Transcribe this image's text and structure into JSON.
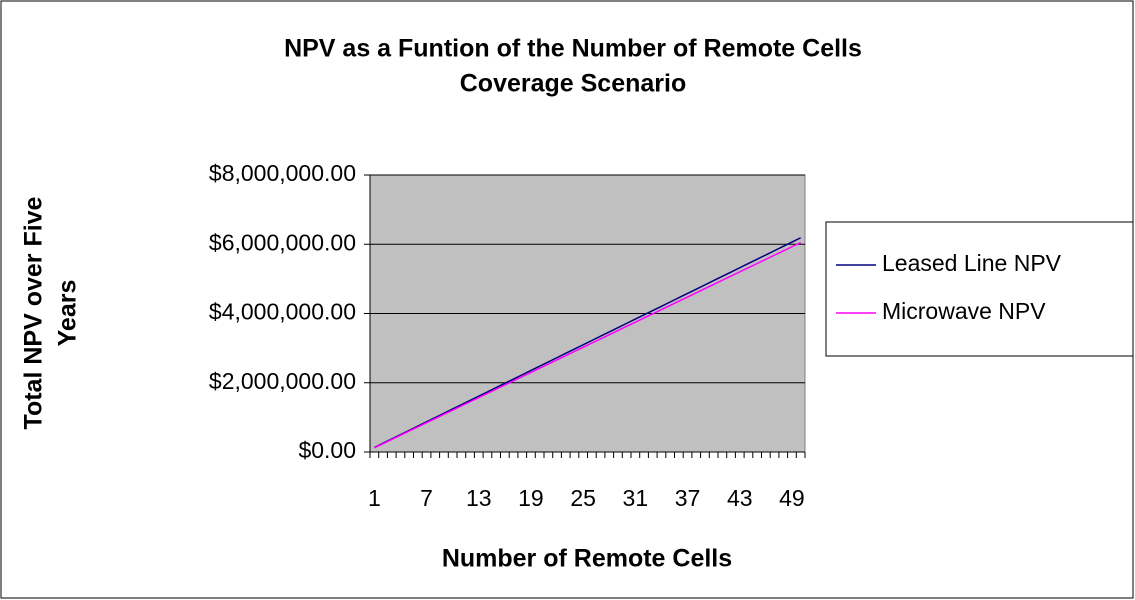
{
  "chart_data": {
    "type": "line",
    "title": [
      "NPV as a Funtion of the Number of Remote Cells",
      "Coverage Scenario"
    ],
    "x_label": "Number of Remote Cells",
    "y_label": [
      "Total NPV over Five",
      "Years"
    ],
    "categories": [
      1,
      null,
      null,
      null,
      null,
      null,
      7,
      null,
      null,
      null,
      null,
      null,
      13,
      null,
      null,
      null,
      null,
      null,
      19,
      null,
      null,
      null,
      null,
      null,
      25,
      null,
      null,
      null,
      null,
      null,
      31,
      null,
      null,
      null,
      null,
      null,
      37,
      null,
      null,
      null,
      null,
      null,
      43,
      null,
      null,
      null,
      null,
      null,
      49,
      null
    ],
    "series": [
      {
        "name": "Leased Line NPV",
        "color": "#000080",
        "values": [
          130000,
          253600,
          377200,
          500800,
          624400,
          748000,
          871600,
          995200,
          1118800,
          1242400,
          1366000,
          1489600,
          1613200,
          1736800,
          1860400,
          1984000,
          2107600,
          2231200,
          2354800,
          2478400,
          2602000,
          2725600,
          2849200,
          2972800,
          3096400,
          3220000,
          3343600,
          3467200,
          3590800,
          3714400,
          3838000,
          3961600,
          4085200,
          4208800,
          4332400,
          4456000,
          4579600,
          4703200,
          4826800,
          4950400,
          5074000,
          5197600,
          5321200,
          5444800,
          5568400,
          5692000,
          5815600,
          5939200,
          6062800,
          6186400
        ]
      },
      {
        "name": "Microwave NPV",
        "color": "#ff00ff",
        "values": [
          120000,
          241000,
          362000,
          483000,
          604000,
          725000,
          846000,
          967000,
          1088000,
          1209000,
          1330000,
          1451000,
          1572000,
          1693000,
          1814000,
          1935000,
          2056000,
          2177000,
          2298000,
          2419000,
          2540000,
          2661000,
          2782000,
          2903000,
          3024000,
          3145000,
          3266000,
          3387000,
          3508000,
          3629000,
          3750000,
          3871000,
          3992000,
          4113000,
          4234000,
          4355000,
          4476000,
          4597000,
          4718000,
          4839000,
          4960000,
          5081000,
          5202000,
          5323000,
          5444000,
          5565000,
          5686000,
          5807000,
          5928000,
          6049000
        ]
      }
    ],
    "ylim": [
      0,
      8000000
    ],
    "yticks": [
      {
        "value": 0,
        "label": "$0.00"
      },
      {
        "value": 2000000,
        "label": "$2,000,000.00"
      },
      {
        "value": 4000000,
        "label": "$4,000,000.00"
      },
      {
        "value": 6000000,
        "label": "$6,000,000.00"
      },
      {
        "value": 8000000,
        "label": "$8,000,000.00"
      }
    ],
    "grid": true,
    "legend": "right"
  }
}
